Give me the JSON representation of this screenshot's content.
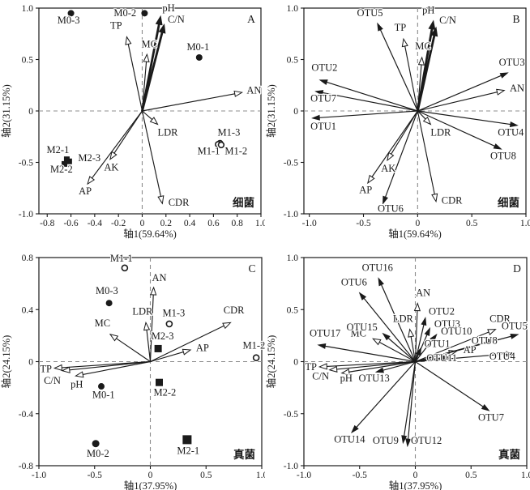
{
  "style": {
    "ink": "#1a1a1a",
    "dash_line": "#8c8c8c",
    "background": "#ffffff"
  },
  "chart_data": [
    {
      "id": "A",
      "type": "scatter",
      "title_letter": "A",
      "group_label": "细菌",
      "xlabel": "轴1(59.64%)",
      "ylabel": "轴2(31.15%)",
      "xlim": [
        -0.87,
        1.0
      ],
      "ylim": [
        -1.0,
        1.0
      ],
      "grid": "zero-dashed",
      "legend": "none",
      "xticks": [
        [
          -0.8,
          "-0.8"
        ],
        [
          -0.6,
          "-0.6"
        ],
        [
          -0.4,
          "-0.4"
        ],
        [
          -0.2,
          "-0.2"
        ],
        [
          0,
          "0"
        ],
        [
          0.2,
          "0.2"
        ],
        [
          0.4,
          "0.4"
        ],
        [
          0.6,
          "0.6"
        ],
        [
          0.8,
          "0.8"
        ],
        [
          1.0,
          "1.0"
        ]
      ],
      "yticks": [
        [
          1.0,
          "1.0"
        ],
        [
          0.5,
          "0.5"
        ],
        [
          0,
          "0"
        ],
        [
          -0.5,
          "-0.5"
        ],
        [
          -1.0,
          "-1.0"
        ]
      ],
      "env_arrows": [
        {
          "label": "pH",
          "x": 0.155,
          "y": 0.92,
          "thick": true,
          "lx": 0.17,
          "ly": 0.97,
          "anchor": "start"
        },
        {
          "label": "C/N",
          "x": 0.185,
          "y": 0.84,
          "thick": true,
          "lx": 0.215,
          "ly": 0.86,
          "anchor": "start"
        },
        {
          "label": "TP",
          "x": -0.13,
          "y": 0.72,
          "lx": -0.22,
          "ly": 0.8,
          "anchor": "middle"
        },
        {
          "label": "MC",
          "x": 0.04,
          "y": 0.55,
          "lx": 0.06,
          "ly": 0.62,
          "anchor": "middle"
        },
        {
          "label": "AN",
          "x": 0.84,
          "y": 0.18,
          "lx": 0.88,
          "ly": 0.17,
          "anchor": "start"
        },
        {
          "label": "LDR",
          "x": 0.13,
          "y": -0.13,
          "lx": 0.13,
          "ly": -0.24,
          "anchor": "start"
        },
        {
          "label": "AK",
          "x": -0.27,
          "y": -0.47,
          "lx": -0.26,
          "ly": -0.58,
          "anchor": "middle"
        },
        {
          "label": "AP",
          "x": -0.46,
          "y": -0.71,
          "lx": -0.48,
          "ly": -0.81,
          "anchor": "middle"
        },
        {
          "label": "CDR",
          "x": 0.17,
          "y": -0.9,
          "lx": 0.22,
          "ly": -0.92,
          "anchor": "start"
        }
      ],
      "otu_arrows": [],
      "points": [
        {
          "label": "M0-3",
          "x": -0.6,
          "y": 0.95,
          "marker": "filled-circle",
          "size": 4,
          "lx": -0.62,
          "ly": 0.85,
          "anchor": "middle"
        },
        {
          "label": "M0-2",
          "x": 0.02,
          "y": 0.95,
          "marker": "filled-circle",
          "size": 4,
          "lx": -0.05,
          "ly": 0.92,
          "anchor": "end"
        },
        {
          "label": "M0-1",
          "x": 0.48,
          "y": 0.52,
          "marker": "filled-circle",
          "size": 4,
          "lx": 0.47,
          "ly": 0.59,
          "anchor": "middle"
        },
        {
          "label": "M1-3",
          "x": 0.655,
          "y": -0.315,
          "marker": "open-circle",
          "size": 3.4,
          "lx": 0.73,
          "ly": -0.24,
          "anchor": "middle"
        },
        {
          "label": "M1-1",
          "x": 0.64,
          "y": -0.325,
          "marker": "open-circle",
          "size": 3.4,
          "lx": 0.56,
          "ly": -0.42,
          "anchor": "middle"
        },
        {
          "label": "M1-2",
          "x": 0.665,
          "y": -0.33,
          "marker": "open-circle",
          "size": 3.4,
          "lx": 0.79,
          "ly": -0.42,
          "anchor": "middle"
        },
        {
          "label": "M2-1",
          "x": -0.635,
          "y": -0.47,
          "marker": "filled-square",
          "size": 7,
          "lx": -0.71,
          "ly": -0.41,
          "anchor": "middle"
        },
        {
          "label": "M2-3",
          "x": -0.615,
          "y": -0.49,
          "marker": "filled-square",
          "size": 7,
          "lx": -0.54,
          "ly": -0.49,
          "anchor": "start"
        },
        {
          "label": "M2-2",
          "x": -0.655,
          "y": -0.515,
          "marker": "filled-square",
          "size": 7,
          "lx": -0.68,
          "ly": -0.6,
          "anchor": "middle"
        }
      ]
    },
    {
      "id": "B",
      "type": "scatter",
      "title_letter": "B",
      "group_label": "细菌",
      "xlabel": "轴1(59.64%)",
      "ylabel": "轴2(31.15%)",
      "xlim": [
        -1.05,
        1.0
      ],
      "ylim": [
        -1.0,
        1.0
      ],
      "grid": "zero-dashed",
      "legend": "none",
      "xticks": [
        [
          -1.0,
          "-1.0"
        ],
        [
          -0.5,
          "-0.5"
        ],
        [
          0,
          "0"
        ],
        [
          0.5,
          "0.5"
        ],
        [
          1.0,
          "1.0"
        ]
      ],
      "yticks": [
        [
          1.0,
          "1.0"
        ],
        [
          0.5,
          "0.5"
        ],
        [
          0,
          "0"
        ],
        [
          -0.5,
          "-0.5"
        ],
        [
          -1.0,
          "-1.0"
        ]
      ],
      "env_arrows": [
        {
          "label": "pH",
          "x": 0.145,
          "y": 0.875,
          "thick": true,
          "lx": 0.1,
          "ly": 0.95,
          "anchor": "middle"
        },
        {
          "label": "C/N",
          "x": 0.17,
          "y": 0.81,
          "thick": true,
          "lx": 0.2,
          "ly": 0.85,
          "anchor": "start"
        },
        {
          "label": "TP",
          "x": -0.13,
          "y": 0.7,
          "lx": -0.16,
          "ly": 0.78,
          "anchor": "middle"
        },
        {
          "label": "MC",
          "x": 0.04,
          "y": 0.52,
          "lx": 0.05,
          "ly": 0.6,
          "anchor": "middle"
        },
        {
          "label": "AN",
          "x": 0.8,
          "y": 0.2,
          "lx": 0.85,
          "ly": 0.19,
          "anchor": "start"
        },
        {
          "label": "LDR",
          "x": 0.12,
          "y": -0.13,
          "lx": 0.12,
          "ly": -0.24,
          "anchor": "start"
        },
        {
          "label": "AK",
          "x": -0.28,
          "y": -0.48,
          "lx": -0.27,
          "ly": -0.59,
          "anchor": "middle"
        },
        {
          "label": "AP",
          "x": -0.46,
          "y": -0.7,
          "lx": -0.48,
          "ly": -0.8,
          "anchor": "middle"
        },
        {
          "label": "CDR",
          "x": 0.17,
          "y": -0.88,
          "lx": 0.22,
          "ly": -0.9,
          "anchor": "start"
        }
      ],
      "otu_arrows": [
        {
          "label": "OTU5",
          "x": -0.37,
          "y": 0.85,
          "lx": -0.44,
          "ly": 0.92,
          "anchor": "middle"
        },
        {
          "label": "OTU2",
          "x": -0.9,
          "y": 0.3,
          "lx": -0.86,
          "ly": 0.39,
          "anchor": "middle"
        },
        {
          "label": "OTU7",
          "x": -0.94,
          "y": 0.19,
          "lx": -0.87,
          "ly": 0.09,
          "anchor": "middle"
        },
        {
          "label": "OTU1",
          "x": -0.97,
          "y": -0.07,
          "lx": -0.87,
          "ly": -0.18,
          "anchor": "middle"
        },
        {
          "label": "OTU3",
          "x": 0.83,
          "y": 0.37,
          "lx": 0.87,
          "ly": 0.44,
          "anchor": "middle"
        },
        {
          "label": "OTU4",
          "x": 0.92,
          "y": -0.14,
          "lx": 0.86,
          "ly": -0.24,
          "anchor": "middle"
        },
        {
          "label": "OTU8",
          "x": 0.77,
          "y": -0.37,
          "lx": 0.79,
          "ly": -0.47,
          "anchor": "middle"
        },
        {
          "label": "OTU6",
          "x": -0.32,
          "y": -0.9,
          "lx": -0.25,
          "ly": -0.98,
          "anchor": "middle"
        }
      ],
      "points": []
    },
    {
      "id": "C",
      "type": "scatter",
      "title_letter": "C",
      "group_label": "真菌",
      "xlabel": "轴1(37.95%)",
      "ylabel": "轴2(24.15%)",
      "xlim": [
        -1.0,
        1.0
      ],
      "ylim": [
        -0.8,
        0.8
      ],
      "grid": "zero-dashed",
      "legend": "none",
      "xticks": [
        [
          -1.0,
          "-1.0"
        ],
        [
          -0.5,
          "-0.5"
        ],
        [
          0,
          "0"
        ],
        [
          0.5,
          "0.5"
        ],
        [
          1.0,
          "1.0"
        ]
      ],
      "yticks": [
        [
          0.8,
          "0.8"
        ],
        [
          0.4,
          "0.4"
        ],
        [
          0,
          "0"
        ],
        [
          -0.4,
          "-0.4"
        ],
        [
          -0.8,
          "-0.8"
        ]
      ],
      "env_arrows": [
        {
          "label": "AN",
          "x": 0.03,
          "y": 0.57,
          "lx": 0.08,
          "ly": 0.62,
          "anchor": "middle"
        },
        {
          "label": "LDR",
          "x": -0.04,
          "y": 0.3,
          "lx": -0.07,
          "ly": 0.36,
          "anchor": "middle"
        },
        {
          "label": "MC",
          "x": -0.36,
          "y": 0.21,
          "lx": -0.43,
          "ly": 0.27,
          "anchor": "middle"
        },
        {
          "label": "CDR",
          "x": 0.72,
          "y": 0.3,
          "lx": 0.75,
          "ly": 0.37,
          "anchor": "middle"
        },
        {
          "label": "AP",
          "x": 0.36,
          "y": 0.09,
          "lx": 0.41,
          "ly": 0.08,
          "anchor": "start"
        },
        {
          "label": "TP",
          "x": -0.86,
          "y": -0.05,
          "lx": -0.99,
          "ly": -0.08,
          "anchor": "start"
        },
        {
          "label": "C/N",
          "x": -0.79,
          "y": -0.07,
          "lx": -0.88,
          "ly": -0.17,
          "anchor": "middle"
        },
        {
          "label": "pH",
          "x": -0.67,
          "y": -0.11,
          "lx": -0.66,
          "ly": -0.2,
          "anchor": "middle"
        }
      ],
      "otu_arrows": [],
      "points": [
        {
          "label": "M1-1",
          "x": -0.23,
          "y": 0.72,
          "marker": "open-circle",
          "size": 3.5,
          "lx": -0.26,
          "ly": 0.77,
          "anchor": "middle"
        },
        {
          "label": "M0-3",
          "x": -0.37,
          "y": 0.45,
          "marker": "filled-circle",
          "size": 4,
          "lx": -0.39,
          "ly": 0.52,
          "anchor": "middle"
        },
        {
          "label": "M1-3",
          "x": 0.17,
          "y": 0.29,
          "marker": "open-circle",
          "size": 3.5,
          "lx": 0.21,
          "ly": 0.35,
          "anchor": "middle"
        },
        {
          "label": "M2-3",
          "x": 0.07,
          "y": 0.1,
          "marker": "filled-square",
          "size": 9,
          "lx": 0.11,
          "ly": 0.17,
          "anchor": "middle"
        },
        {
          "label": "M1-2",
          "x": 0.95,
          "y": 0.03,
          "marker": "open-circle",
          "size": 3.5,
          "lx": 0.93,
          "ly": 0.1,
          "anchor": "middle"
        },
        {
          "label": "M0-1",
          "x": -0.44,
          "y": -0.19,
          "marker": "filled-circle",
          "size": 4,
          "lx": -0.42,
          "ly": -0.28,
          "anchor": "middle"
        },
        {
          "label": "M2-2",
          "x": 0.08,
          "y": -0.16,
          "marker": "filled-square",
          "size": 9,
          "lx": 0.13,
          "ly": -0.26,
          "anchor": "middle"
        },
        {
          "label": "M0-2",
          "x": -0.49,
          "y": -0.63,
          "marker": "filled-circle",
          "size": 4.5,
          "lx": -0.47,
          "ly": -0.73,
          "anchor": "middle"
        },
        {
          "label": "M2-1",
          "x": 0.33,
          "y": -0.6,
          "marker": "filled-square",
          "size": 11,
          "lx": 0.34,
          "ly": -0.71,
          "anchor": "middle"
        }
      ]
    },
    {
      "id": "D",
      "type": "scatter",
      "title_letter": "D",
      "group_label": "真菌",
      "xlabel": "轴1(37.95%)",
      "ylabel": "轴2(24.15%)",
      "xlim": [
        -1.0,
        1.0
      ],
      "ylim": [
        -1.0,
        1.0
      ],
      "grid": "zero-dashed",
      "legend": "none",
      "xticks": [
        [
          -1.0,
          "-1.0"
        ],
        [
          -0.5,
          "-0.5"
        ],
        [
          0,
          "0"
        ],
        [
          0.5,
          "0.5"
        ],
        [
          1.0,
          "1.0"
        ]
      ],
      "yticks": [
        [
          1.0,
          "1.0"
        ],
        [
          0.5,
          "0.5"
        ],
        [
          0,
          "0"
        ],
        [
          -0.5,
          "-0.5"
        ],
        [
          -1.0,
          "-1.0"
        ]
      ],
      "env_arrows": [
        {
          "label": "AN",
          "x": 0.02,
          "y": 0.56,
          "lx": 0.07,
          "ly": 0.63,
          "anchor": "middle"
        },
        {
          "label": "LDR",
          "x": -0.05,
          "y": 0.31,
          "lx": -0.11,
          "ly": 0.38,
          "anchor": "middle"
        },
        {
          "label": "MC",
          "x": -0.38,
          "y": 0.22,
          "lx": -0.44,
          "ly": 0.24,
          "anchor": "end"
        },
        {
          "label": "CDR",
          "x": 0.72,
          "y": 0.31,
          "lx": 0.76,
          "ly": 0.38,
          "anchor": "middle"
        },
        {
          "label": "AP",
          "x": 0.37,
          "y": 0.1,
          "lx": 0.43,
          "ly": 0.08,
          "anchor": "start"
        },
        {
          "label": "TP",
          "x": -0.86,
          "y": -0.05,
          "lx": -0.99,
          "ly": -0.08,
          "anchor": "start"
        },
        {
          "label": "C/N",
          "x": -0.77,
          "y": -0.08,
          "lx": -0.85,
          "ly": -0.17,
          "anchor": "middle"
        },
        {
          "label": "pH",
          "x": -0.66,
          "y": -0.11,
          "lx": -0.62,
          "ly": -0.19,
          "anchor": "middle"
        }
      ],
      "otu_arrows": [
        {
          "label": "OTU16",
          "x": -0.33,
          "y": 0.8,
          "lx": -0.34,
          "ly": 0.87,
          "anchor": "middle"
        },
        {
          "label": "OTU6",
          "x": -0.5,
          "y": 0.66,
          "lx": -0.55,
          "ly": 0.73,
          "anchor": "middle"
        },
        {
          "label": "OTU2",
          "x": 0.09,
          "y": 0.42,
          "lx": 0.12,
          "ly": 0.45,
          "anchor": "start"
        },
        {
          "label": "OTU3",
          "x": 0.13,
          "y": 0.32,
          "lx": 0.17,
          "ly": 0.33,
          "anchor": "start"
        },
        {
          "label": "OTU10",
          "x": 0.19,
          "y": 0.26,
          "lx": 0.23,
          "ly": 0.26,
          "anchor": "start"
        },
        {
          "label": "OTU15",
          "x": -0.29,
          "y": 0.27,
          "lx": -0.34,
          "ly": 0.3,
          "anchor": "end"
        },
        {
          "label": "OTU17",
          "x": -0.87,
          "y": 0.16,
          "lx": -0.81,
          "ly": 0.24,
          "anchor": "middle"
        },
        {
          "label": "OTU1",
          "x": 0.05,
          "y": 0.13,
          "lx": 0.08,
          "ly": 0.14,
          "anchor": "start"
        },
        {
          "label": "OTU11",
          "x": 0.3,
          "y": 0.045,
          "lx": 0.1,
          "ly": 0.005,
          "anchor": "start"
        },
        {
          "label": "OTU8",
          "x": 0.72,
          "y": 0.21,
          "lx": 0.62,
          "ly": 0.17,
          "anchor": "middle"
        },
        {
          "label": "OTU5",
          "x": 0.92,
          "y": 0.26,
          "lx": 0.89,
          "ly": 0.31,
          "anchor": "middle"
        },
        {
          "label": "OTU4",
          "x": 0.88,
          "y": 0.08,
          "lx": 0.78,
          "ly": 0.02,
          "anchor": "middle"
        },
        {
          "label": "OTU13",
          "x": -0.35,
          "y": -0.1,
          "lx": -0.37,
          "ly": -0.19,
          "anchor": "middle"
        },
        {
          "label": "OTU7",
          "x": 0.66,
          "y": -0.47,
          "lx": 0.68,
          "ly": -0.57,
          "anchor": "middle"
        },
        {
          "label": "OTU14",
          "x": -0.57,
          "y": -0.68,
          "lx": -0.59,
          "ly": -0.78,
          "anchor": "middle"
        },
        {
          "label": "OTU9",
          "x": -0.11,
          "y": -0.78,
          "lx": -0.15,
          "ly": -0.79,
          "anchor": "end"
        },
        {
          "label": "OTU12",
          "x": -0.07,
          "y": -0.81,
          "lx": -0.04,
          "ly": -0.79,
          "anchor": "start"
        }
      ],
      "points": []
    }
  ]
}
